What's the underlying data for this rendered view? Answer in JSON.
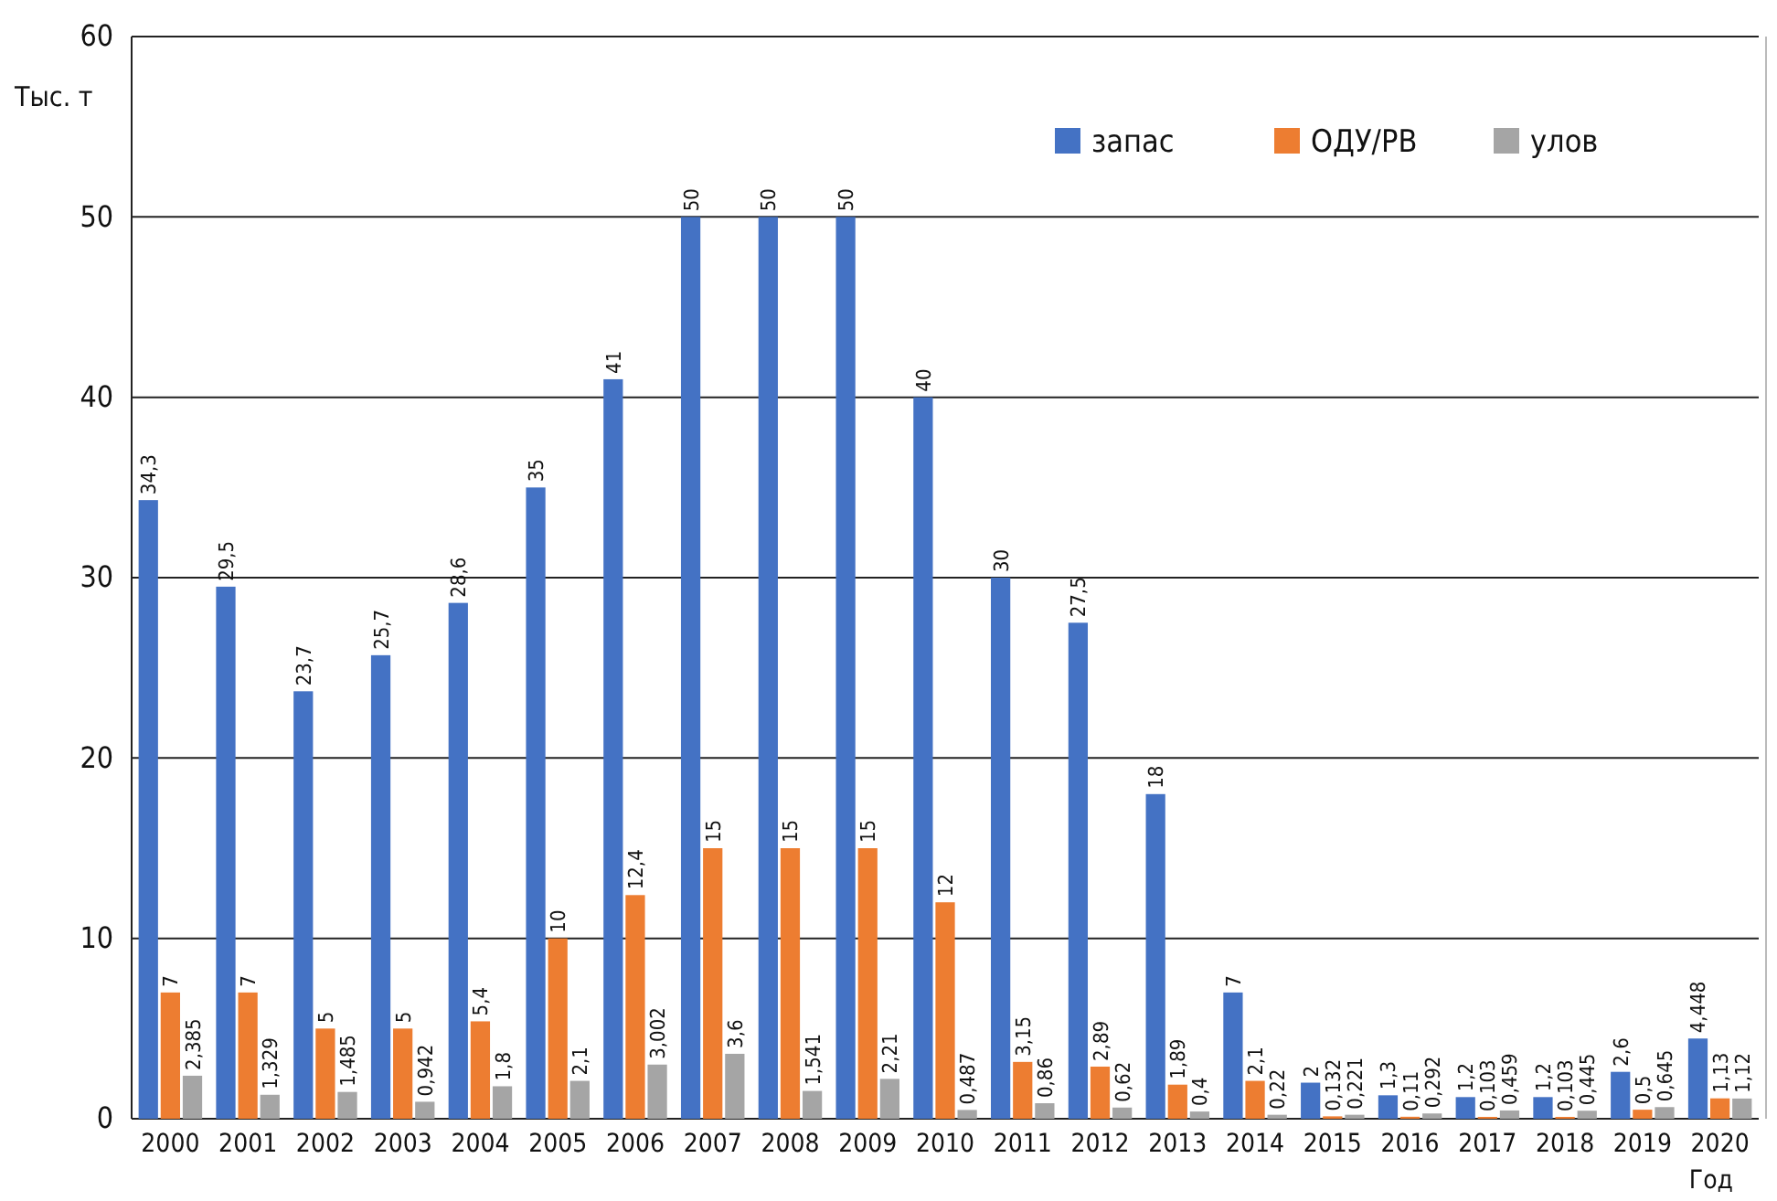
{
  "chart_data": {
    "type": "bar",
    "ylabel": "Тыс. т",
    "xlabel": "Год",
    "categories": [
      "2000",
      "2001",
      "2002",
      "2003",
      "2004",
      "2005",
      "2006",
      "2007",
      "2008",
      "2009",
      "2010",
      "2011",
      "2012",
      "2013",
      "2014",
      "2015",
      "2016",
      "2017",
      "2018",
      "2019",
      "2020"
    ],
    "series": [
      {
        "name": "запас",
        "color": "#4472c4",
        "values": [
          34.3,
          29.5,
          23.7,
          25.7,
          28.6,
          35,
          41,
          50,
          50,
          50,
          40,
          30,
          27.5,
          18,
          7,
          2,
          1.3,
          1.2,
          1.2,
          2.6,
          4.448
        ],
        "value_labels": [
          "34,3",
          "29,5",
          "23,7",
          "25,7",
          "28,6",
          "35",
          "41",
          "50",
          "50",
          "50",
          "40",
          "30",
          "27,5",
          "18",
          "7",
          "2",
          "1,3",
          "1,2",
          "1,2",
          "2,6",
          "4,448"
        ]
      },
      {
        "name": "ОДУ/РВ",
        "color": "#ed7d31",
        "values": [
          7,
          7,
          5,
          5,
          5.4,
          10,
          12.4,
          15,
          15,
          15,
          12,
          3.15,
          2.89,
          1.89,
          2.1,
          0.132,
          0.11,
          0.103,
          0.103,
          0.5,
          1.13
        ],
        "value_labels": [
          "7",
          "7",
          "5",
          "5",
          "5,4",
          "10",
          "12,4",
          "15",
          "15",
          "15",
          "12",
          "3,15",
          "2,89",
          "1,89",
          "2,1",
          "0,132",
          "0,11",
          "0,103",
          "0,103",
          "0,5",
          "1,13"
        ]
      },
      {
        "name": "улов",
        "color": "#a5a5a5",
        "values": [
          2.385,
          1.329,
          1.485,
          0.942,
          1.8,
          2.1,
          3.002,
          3.6,
          1.541,
          2.21,
          0.487,
          0.86,
          0.62,
          0.4,
          0.22,
          0.221,
          0.292,
          0.459,
          0.445,
          0.645,
          1.12
        ],
        "value_labels": [
          "2,385",
          "1,329",
          "1,485",
          "0,942",
          "1,8",
          "2,1",
          "3,002",
          "3,6",
          "1,541",
          "2,21",
          "0,487",
          "0,86",
          "0,62",
          "0,4",
          "0,22",
          "0,221",
          "0,292",
          "0,459",
          "0,445",
          "0,645",
          "1,12"
        ]
      }
    ],
    "ylim": [
      0,
      60
    ],
    "yticks": [
      0,
      10,
      20,
      30,
      40,
      50,
      60
    ],
    "grid": "y",
    "legend": "top right"
  }
}
